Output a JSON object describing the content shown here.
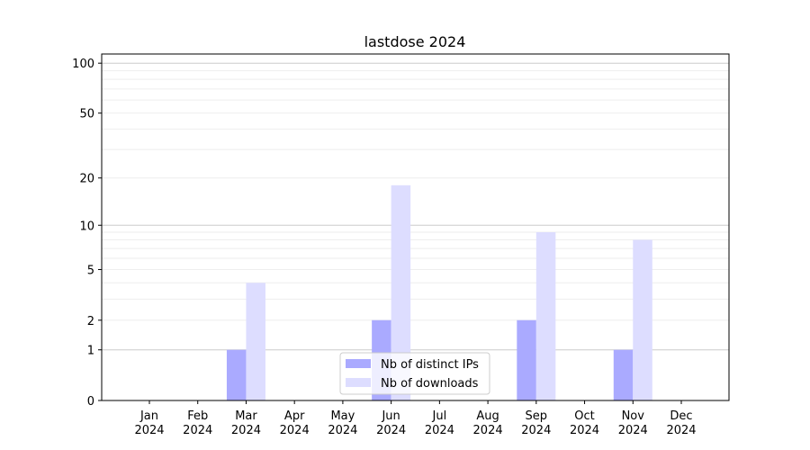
{
  "chart_data": {
    "type": "bar",
    "title": "lastdose 2024",
    "xlabel": "",
    "ylabel": "",
    "yscale": "log(1+y)",
    "ylim": [
      0,
      110
    ],
    "yticks": [
      0,
      1,
      2,
      5,
      10,
      20,
      50,
      100
    ],
    "grid": true,
    "legend_position": "bottom-center",
    "categories": [
      "Jan\n2024",
      "Feb\n2024",
      "Mar\n2024",
      "Apr\n2024",
      "May\n2024",
      "Jun\n2024",
      "Jul\n2024",
      "Aug\n2024",
      "Sep\n2024",
      "Oct\n2024",
      "Nov\n2024",
      "Dec\n2024"
    ],
    "series": [
      {
        "name": "Nb of distinct IPs",
        "color": "#aaaaff",
        "values": [
          0,
          0,
          1,
          0,
          0,
          2,
          0,
          0,
          2,
          0,
          1,
          0
        ]
      },
      {
        "name": "Nb of downloads",
        "color": "#ddddff",
        "values": [
          0,
          0,
          4,
          0,
          0,
          18,
          0,
          0,
          9,
          0,
          8,
          0
        ]
      }
    ]
  }
}
